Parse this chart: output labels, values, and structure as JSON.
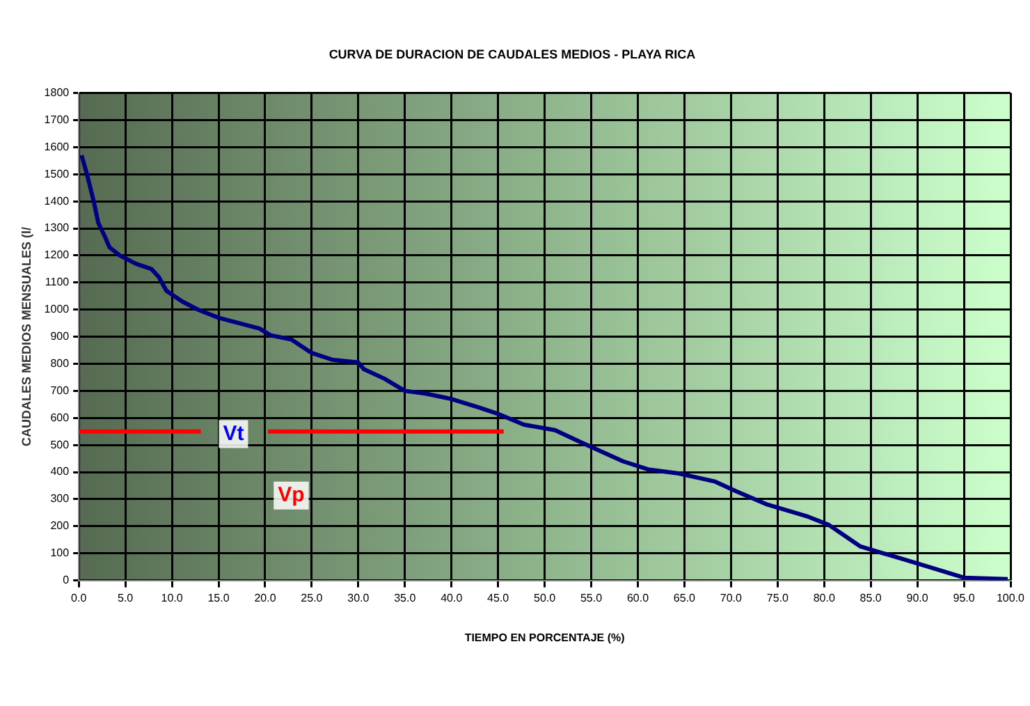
{
  "chart_data": {
    "type": "line",
    "title": "CURVA DE DURACION DE CAUDALES MEDIOS - PLAYA RICA",
    "xlabel": "TIEMPO EN PORCENTAJE (%)",
    "ylabel": "CAUDALES MEDIOS MENSUALES (l/",
    "xlim": [
      0,
      100
    ],
    "ylim": [
      0,
      1800
    ],
    "xticks": [
      {
        "value": 0,
        "label": "0.0"
      },
      {
        "value": 5,
        "label": "5.0"
      },
      {
        "value": 10,
        "label": "10.0"
      },
      {
        "value": 15,
        "label": "15.0"
      },
      {
        "value": 20,
        "label": "20.0"
      },
      {
        "value": 25,
        "label": "25.0"
      },
      {
        "value": 30,
        "label": "30.0"
      },
      {
        "value": 35,
        "label": "35.0"
      },
      {
        "value": 40,
        "label": "40.0"
      },
      {
        "value": 45,
        "label": "45.0"
      },
      {
        "value": 50,
        "label": "50.0"
      },
      {
        "value": 55,
        "label": "55.0"
      },
      {
        "value": 60,
        "label": "60.0"
      },
      {
        "value": 65,
        "label": "65.0"
      },
      {
        "value": 70,
        "label": "70.0"
      },
      {
        "value": 75,
        "label": "75.0"
      },
      {
        "value": 80,
        "label": "80.0"
      },
      {
        "value": 85,
        "label": "85.0"
      },
      {
        "value": 90,
        "label": "90.0"
      },
      {
        "value": 95,
        "label": "95.0"
      },
      {
        "value": 100,
        "label": "100.0"
      }
    ],
    "yticks": [
      0,
      100,
      200,
      300,
      400,
      500,
      600,
      700,
      800,
      900,
      1000,
      1100,
      1200,
      1300,
      1400,
      1500,
      1600,
      1700,
      1800
    ],
    "grid": true,
    "marker": "none",
    "line_style": "solid",
    "series": [
      {
        "color": "#000080",
        "x": [
          0.3,
          0.8,
          1.1,
          1.6,
          2.1,
          2.8,
          3.3,
          4.4,
          6.1,
          7.8,
          8.6,
          9.4,
          11.1,
          12.8,
          15,
          17.2,
          19.4,
          20.6,
          22.8,
          25,
          27.2,
          30,
          30.6,
          32.8,
          35,
          37.2,
          40,
          42.8,
          45,
          47.8,
          51.1,
          53.9,
          58.4,
          61.1,
          64.4,
          68.3,
          70.5,
          73.9,
          78.3,
          80.5,
          83.9,
          88.3,
          91.7,
          95,
          99.7
        ],
        "values": [
          1570,
          1510,
          1470,
          1400,
          1320,
          1270,
          1230,
          1200,
          1170,
          1150,
          1120,
          1070,
          1030,
          1000,
          970,
          950,
          930,
          905,
          890,
          840,
          815,
          805,
          780,
          745,
          700,
          690,
          670,
          640,
          615,
          575,
          555,
          510,
          440,
          410,
          395,
          365,
          330,
          280,
          235,
          205,
          125,
          80,
          45,
          10,
          5
        ]
      },
      {
        "color": "#ff0000",
        "x": [
          0,
          13.1,
          16.6,
          20.3,
          45.6
        ],
        "values": [
          550,
          550,
          null,
          550,
          550
        ]
      }
    ],
    "annotations": [
      "Vt",
      "Vp"
    ]
  }
}
